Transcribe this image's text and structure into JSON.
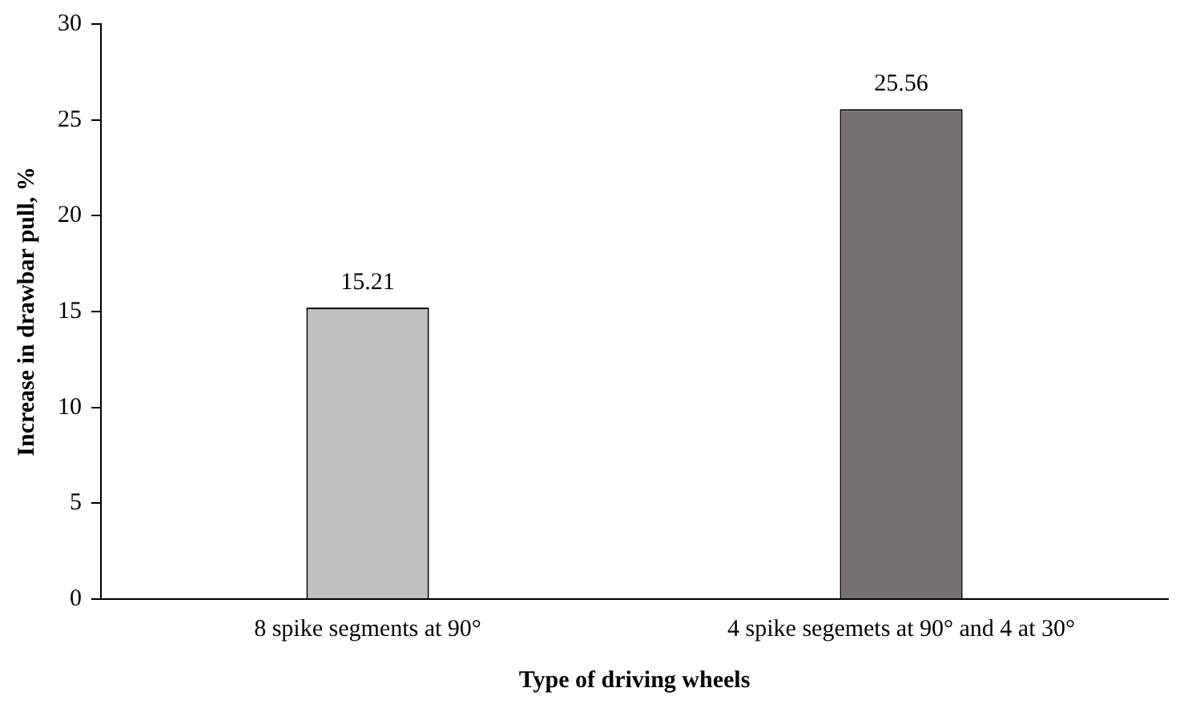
{
  "chart_data": {
    "type": "bar",
    "categories": [
      "8 spike segments at 90°",
      "4 spike segemets at 90° and 4 at 30°"
    ],
    "values": [
      15.21,
      25.56
    ],
    "colors": [
      "#bfbfbf",
      "#767171"
    ],
    "xlabel": "Type of driving wheels",
    "ylabel": "Increase in drawbar pull, %",
    "ylim": [
      0,
      30
    ],
    "yticks": [
      0,
      5,
      10,
      15,
      20,
      25,
      30
    ],
    "grid": false,
    "legend": false,
    "data_labels": true
  }
}
